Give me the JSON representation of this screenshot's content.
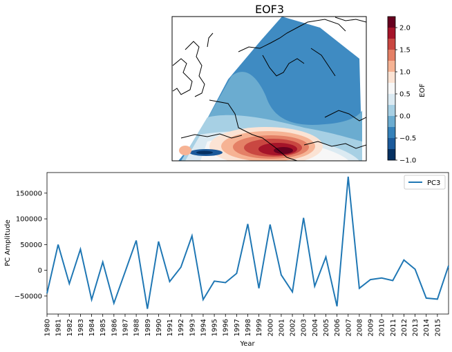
{
  "map": {
    "title": "EOF3",
    "colorbar_label": "EOF",
    "colorbar_ticks": [
      "2.0",
      "1.5",
      "1.0",
      "0.5",
      "0.0",
      "−0.5",
      "−1.0"
    ],
    "colorbar_colors": [
      "#67001f",
      "#a51429",
      "#c94741",
      "#e48066",
      "#f6b394",
      "#fbe3d4",
      "#f7f7f7",
      "#dbeaf2",
      "#a7d0e4",
      "#6bacd0",
      "#3581b9",
      "#1b5a9b",
      "#053061"
    ],
    "colorbar_range": [
      -1.0,
      2.25
    ]
  },
  "chart_data": {
    "type": "line",
    "x": [
      1980,
      1981,
      1982,
      1983,
      1984,
      1985,
      1986,
      1987,
      1988,
      1989,
      1990,
      1991,
      1992,
      1993,
      1994,
      1995,
      1996,
      1997,
      1998,
      1999,
      2000,
      2001,
      2002,
      2003,
      2004,
      2005,
      2006,
      2007,
      2008,
      2009,
      2010,
      2011,
      2012,
      2013,
      2014,
      2015,
      2016
    ],
    "series": [
      {
        "name": "PC3",
        "color": "#1f77b4",
        "values": [
          -45000,
          50000,
          -26000,
          41000,
          -57000,
          16000,
          -64000,
          -3000,
          58000,
          -75000,
          56000,
          -22000,
          6000,
          67000,
          -57000,
          -21000,
          -24000,
          -6000,
          90000,
          -35000,
          89000,
          -9000,
          -42000,
          102000,
          -31000,
          26000,
          -70000,
          182000,
          -35000,
          -18000,
          -15000,
          -20000,
          20000,
          2000,
          -54000,
          -56000,
          9000
        ]
      }
    ],
    "xlabel": "Year",
    "ylabel": "PC Amplitude",
    "x_tick_labels": [
      "1980",
      "1981",
      "1982",
      "1983",
      "1984",
      "1985",
      "1986",
      "1987",
      "1988",
      "1989",
      "1990",
      "1991",
      "1992",
      "1993",
      "1994",
      "1995",
      "1996",
      "1997",
      "1998",
      "1999",
      "2000",
      "2001",
      "2002",
      "2003",
      "2004",
      "2005",
      "2006",
      "2007",
      "2008",
      "2009",
      "2010",
      "2011",
      "2012",
      "2013",
      "2014",
      "2015"
    ],
    "y_ticks": [
      -50000,
      0,
      50000,
      100000,
      150000
    ],
    "y_tick_labels": [
      "−50000",
      "0",
      "50000",
      "100000",
      "150000"
    ],
    "xlim": [
      1980,
      2016
    ],
    "ylim": [
      -85000,
      190000
    ],
    "legend": "top-right",
    "grid": false
  }
}
